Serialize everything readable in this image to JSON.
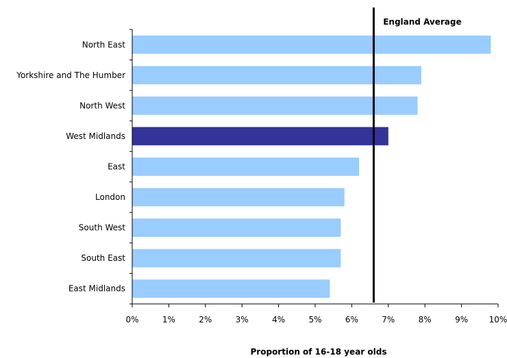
{
  "chart_data": {
    "type": "bar",
    "orientation": "horizontal",
    "categories": [
      "North East",
      "Yorkshire and The Humber",
      "North West",
      "West Midlands",
      "East",
      "London",
      "South West",
      "South East",
      "East Midlands"
    ],
    "values": [
      9.8,
      7.9,
      7.8,
      7.0,
      6.2,
      5.8,
      5.7,
      5.7,
      5.4
    ],
    "highlight_category": "West Midlands",
    "colors": {
      "bar": "#99ccff",
      "highlight": "#333399",
      "reference_line": "#000000",
      "axis": "#000000"
    },
    "xlabel": "Proportion of 16-18 year olds",
    "ylabel": "",
    "xlim": [
      0,
      10
    ],
    "x_ticks": [
      "0%",
      "1%",
      "2%",
      "3%",
      "4%",
      "5%",
      "6%",
      "7%",
      "8%",
      "9%",
      "10%"
    ],
    "reference_line": {
      "label": "England Average",
      "value": 6.6
    },
    "grid": false,
    "legend": "none"
  }
}
